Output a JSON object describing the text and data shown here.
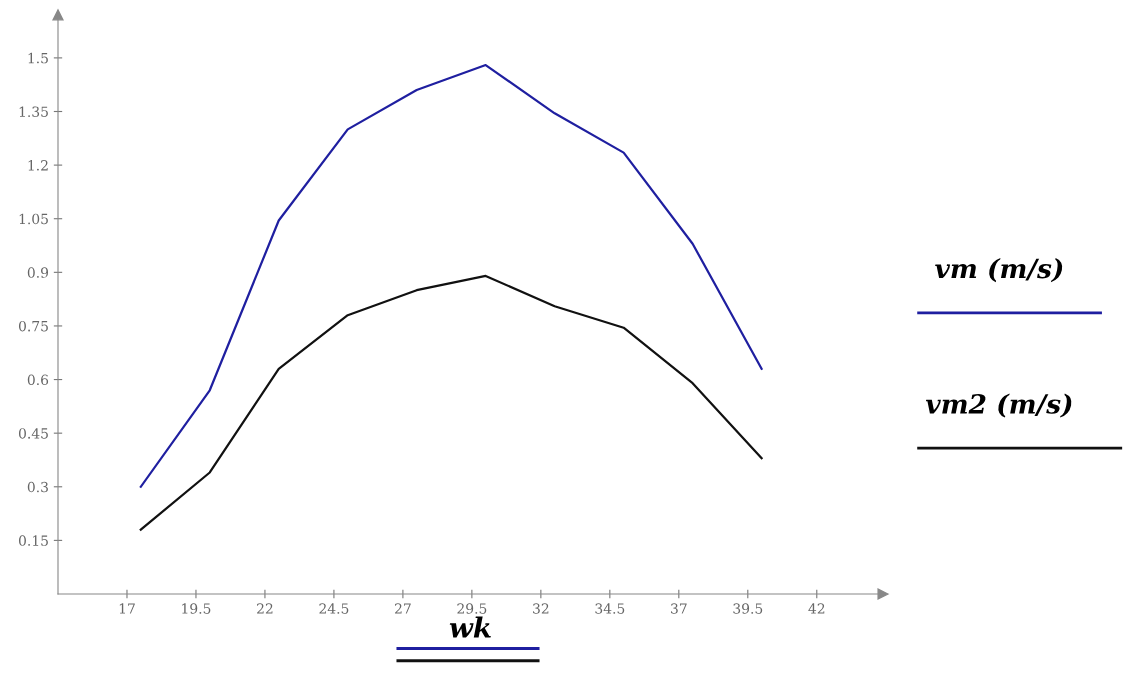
{
  "chart_data": {
    "type": "line",
    "xlabel": "wk",
    "x": [
      17.5,
      20,
      22.5,
      25,
      27.5,
      30,
      32.5,
      35,
      37.5,
      40
    ],
    "series": [
      {
        "name": "vm (m/s)",
        "color": "#1f1fa0",
        "values": [
          0.3,
          0.57,
          1.045,
          1.3,
          1.41,
          1.48,
          1.345,
          1.235,
          0.98,
          0.63
        ]
      },
      {
        "name": "vm2 (m/s)",
        "color": "#111111",
        "values": [
          0.18,
          0.34,
          0.63,
          0.78,
          0.85,
          0.89,
          0.805,
          0.745,
          0.59,
          0.38
        ]
      }
    ],
    "xlim": [
      14.5,
      44.4
    ],
    "ylim": [
      0,
      1.62
    ],
    "xticks": [
      17,
      19.5,
      22,
      24.5,
      27,
      29.5,
      32,
      34.5,
      37,
      39.5,
      42
    ],
    "yticks": [
      0.15,
      0.3,
      0.45,
      0.6,
      0.75,
      0.9,
      1.05,
      1.2,
      1.35,
      1.5
    ],
    "grid": false,
    "legend": "right",
    "marker": "none",
    "line_style": "solid"
  }
}
